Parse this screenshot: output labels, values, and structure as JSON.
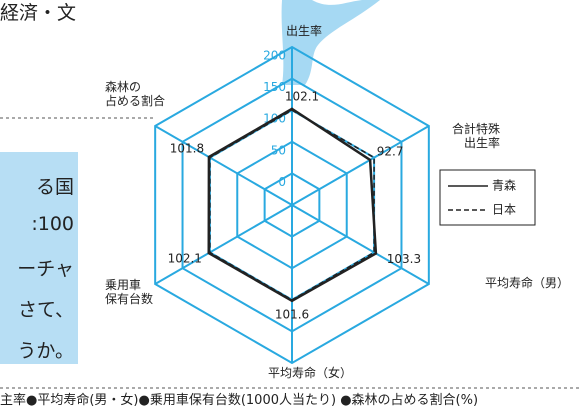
{
  "page": {
    "top_text": "経済・文",
    "sidebar_lines": [
      "る国",
      ":100",
      "ーチャ",
      "さて、",
      "うか。"
    ],
    "caption": "主率●平均寿命(男・女)●乗用車保有台数(1000人当たり) ●森林の占める割合(%)"
  },
  "chart_data": {
    "type": "radar",
    "categories": [
      "出生率",
      "合計特殊\n出生率",
      "平均寿命（男）",
      "平均寿命（女）",
      "乗用車\n保有台数",
      "森林の\n占める割合"
    ],
    "series": [
      {
        "name": "青森",
        "color": "#222222",
        "dash": "solid",
        "values": [
          102.1,
          92.7,
          103.3,
          101.6,
          102.1,
          101.8
        ]
      },
      {
        "name": "日本",
        "color": "#222222",
        "dash": "dashed",
        "values": [
          100,
          100,
          100,
          100,
          100,
          100
        ]
      }
    ],
    "rlim": [
      -50,
      200
    ],
    "rticks": [
      0,
      50,
      100,
      150,
      200
    ],
    "grid_color": "#29a9e0",
    "legend": "right"
  }
}
